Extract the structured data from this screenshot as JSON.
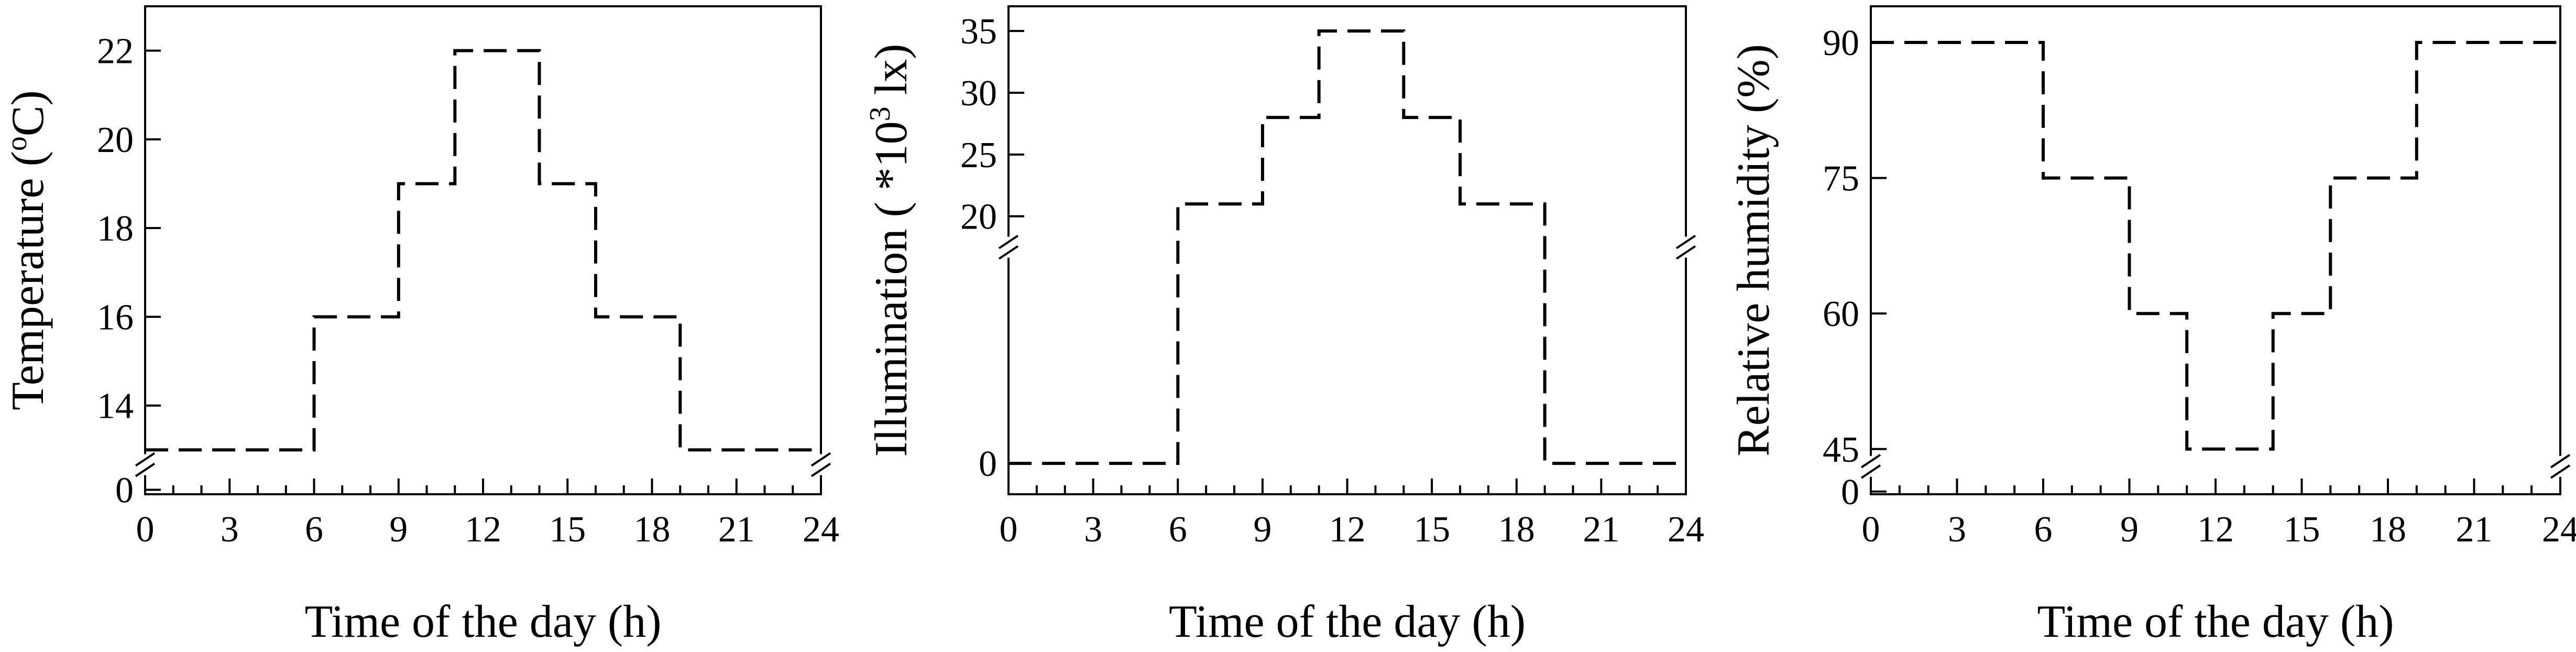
{
  "chart_data": [
    {
      "type": "line",
      "step": true,
      "line_style": "dashed",
      "xlabel": "Time of the day (h)",
      "ylabel": "Temperature (°C)",
      "ylabel_parts": {
        "before": "Temperature (",
        "sup": "o",
        "after": "C)"
      },
      "xlim": [
        0,
        24
      ],
      "xticks": [
        "0",
        "3",
        "6",
        "9",
        "12",
        "15",
        "18",
        "21",
        "24"
      ],
      "ylim": [
        12,
        23
      ],
      "yticks": [
        {
          "label": "14",
          "value": 14
        },
        {
          "label": "16",
          "value": 16
        },
        {
          "label": "18",
          "value": 18
        },
        {
          "label": "20",
          "value": 20
        },
        {
          "label": "22",
          "value": 22
        }
      ],
      "axis_break": {
        "label": "0",
        "value": 12.1
      },
      "x": [
        0,
        6,
        9,
        11,
        14,
        16,
        19,
        24
      ],
      "y": [
        13,
        16,
        19,
        22,
        19,
        16,
        13,
        13
      ]
    },
    {
      "type": "line",
      "step": true,
      "line_style": "dashed",
      "xlabel": "Time of the day (h)",
      "ylabel": "Illumination ( *10³ lx)",
      "ylabel_parts": {
        "before": "Illumination ( *10",
        "sup": "3",
        "after": " lx)"
      },
      "xlim": [
        0,
        24
      ],
      "xticks": [
        "0",
        "3",
        "6",
        "9",
        "12",
        "15",
        "18",
        "21",
        "24"
      ],
      "ylim": [
        -2.5,
        37
      ],
      "yticks": [
        {
          "label": "0",
          "value": 0
        },
        {
          "label": "20",
          "value": 20
        },
        {
          "label": "25",
          "value": 25
        },
        {
          "label": "30",
          "value": 30
        },
        {
          "label": "35",
          "value": 35
        }
      ],
      "axis_break_at": 17.5,
      "x": [
        0,
        6,
        9,
        11,
        14,
        16,
        19,
        24
      ],
      "y": [
        0,
        21,
        28,
        35,
        28,
        21,
        0,
        0
      ]
    },
    {
      "type": "line",
      "step": true,
      "line_style": "dashed",
      "xlabel": "Time of the day (h)",
      "ylabel": "Relative humidity (%)",
      "ylabel_parts": {
        "before": "Relative humidity (%)",
        "sup": "",
        "after": ""
      },
      "xlim": [
        0,
        24
      ],
      "xticks": [
        "0",
        "3",
        "6",
        "9",
        "12",
        "15",
        "18",
        "21",
        "24"
      ],
      "ylim": [
        40,
        94
      ],
      "yticks": [
        {
          "label": "45",
          "value": 45
        },
        {
          "label": "60",
          "value": 60
        },
        {
          "label": "75",
          "value": 75
        },
        {
          "label": "90",
          "value": 90
        }
      ],
      "axis_break": {
        "label": "0",
        "value": 40.3
      },
      "x": [
        0,
        6,
        9,
        11,
        14,
        16,
        19,
        24
      ],
      "y": [
        90,
        75,
        60,
        45,
        60,
        75,
        90,
        90
      ]
    }
  ]
}
